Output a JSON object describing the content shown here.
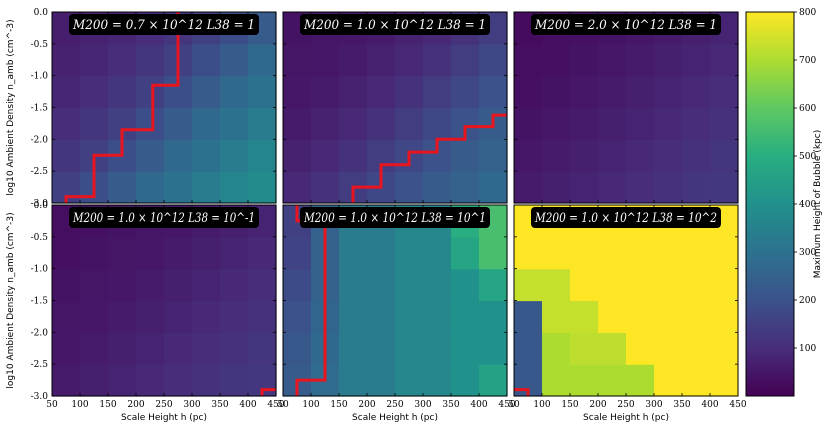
{
  "chart_data": {
    "type": "heatmap",
    "shared": {
      "xlabel": "Scale Height h (pc)",
      "ylabel": "log10 Ambient Density n_amb (cm^-3)",
      "xlim": [
        50,
        450
      ],
      "ylim": [
        -3.0,
        0.0
      ],
      "xticks": [
        "50",
        "100",
        "150",
        "200",
        "250",
        "300",
        "350",
        "400",
        "450"
      ],
      "yticks": [
        "0.0",
        "-0.5",
        "-1.0",
        "-1.5",
        "-2.0",
        "-2.5",
        "-3.0"
      ]
    },
    "colorbar": {
      "label": "Maximum Height of Bubble (kpc)",
      "colormap": "viridis",
      "range": [
        0,
        800
      ],
      "ticks": [
        "100",
        "200",
        "300",
        "400",
        "500",
        "600",
        "700",
        "800"
      ]
    },
    "x_bins": [
      75,
      125,
      175,
      225,
      275,
      325,
      375,
      425
    ],
    "y_bins": [
      -2.75,
      -2.25,
      -1.75,
      -1.25,
      -0.75,
      -0.25
    ],
    "panels": [
      {
        "title": "M200 = 0.7 × 10^12  L38 = 1",
        "values": [
          [
            150,
            190,
            230,
            270,
            300,
            330,
            360,
            380
          ],
          [
            120,
            150,
            190,
            230,
            270,
            300,
            330,
            360
          ],
          [
            100,
            120,
            150,
            190,
            230,
            270,
            300,
            330
          ],
          [
            85,
            100,
            120,
            150,
            190,
            230,
            270,
            300
          ],
          [
            75,
            85,
            100,
            120,
            150,
            190,
            230,
            270
          ],
          [
            65,
            75,
            85,
            100,
            120,
            150,
            190,
            230
          ]
        ],
        "boundary": [
          [
            75,
            -3
          ],
          [
            75,
            -2.9
          ],
          [
            125,
            -2.9
          ],
          [
            125,
            -2.25
          ],
          [
            175,
            -2.25
          ],
          [
            175,
            -1.85
          ],
          [
            230,
            -1.85
          ],
          [
            230,
            -1.15
          ],
          [
            275,
            -1.15
          ],
          [
            275,
            0
          ]
        ]
      },
      {
        "title": "M200 = 1.0 × 10^12  L38 = 1",
        "values": [
          [
            90,
            110,
            140,
            170,
            200,
            230,
            250,
            270
          ],
          [
            75,
            90,
            110,
            140,
            170,
            200,
            230,
            250
          ],
          [
            60,
            75,
            90,
            110,
            140,
            170,
            200,
            230
          ],
          [
            50,
            60,
            75,
            90,
            110,
            140,
            170,
            200
          ],
          [
            45,
            50,
            60,
            75,
            90,
            110,
            140,
            170
          ],
          [
            40,
            45,
            50,
            60,
            75,
            90,
            110,
            140
          ]
        ],
        "boundary": [
          [
            175,
            -3
          ],
          [
            175,
            -2.75
          ],
          [
            225,
            -2.75
          ],
          [
            225,
            -2.4
          ],
          [
            275,
            -2.4
          ],
          [
            275,
            -2.2
          ],
          [
            325,
            -2.2
          ],
          [
            325,
            -2.0
          ],
          [
            375,
            -2.0
          ],
          [
            375,
            -1.8
          ],
          [
            425,
            -1.8
          ],
          [
            425,
            -1.62
          ],
          [
            450,
            -1.62
          ]
        ]
      },
      {
        "title": "M200 = 2.0 × 10^12  L38 = 1",
        "values": [
          [
            60,
            70,
            80,
            90,
            100,
            110,
            120,
            130
          ],
          [
            50,
            60,
            70,
            80,
            90,
            100,
            110,
            120
          ],
          [
            40,
            50,
            60,
            70,
            80,
            90,
            100,
            110
          ],
          [
            35,
            40,
            50,
            60,
            70,
            80,
            90,
            100
          ],
          [
            30,
            35,
            40,
            50,
            60,
            70,
            80,
            90
          ],
          [
            25,
            30,
            35,
            40,
            50,
            60,
            70,
            80
          ]
        ],
        "boundary": []
      },
      {
        "title": "M200 = 1.0 × 10^12  L38 = 10^-1",
        "values": [
          [
            60,
            70,
            80,
            90,
            100,
            110,
            120,
            130
          ],
          [
            50,
            60,
            70,
            80,
            90,
            100,
            110,
            120
          ],
          [
            45,
            50,
            60,
            70,
            80,
            90,
            100,
            110
          ],
          [
            40,
            45,
            50,
            60,
            70,
            80,
            90,
            100
          ],
          [
            35,
            40,
            45,
            50,
            60,
            70,
            80,
            90
          ],
          [
            30,
            35,
            40,
            45,
            50,
            60,
            70,
            80
          ]
        ],
        "boundary": [
          [
            450,
            -2.9
          ],
          [
            425,
            -2.9
          ],
          [
            425,
            -3
          ]
        ]
      },
      {
        "title": "M200 = 1.0 × 10^12  L38 = 10^1",
        "values": [
          [
            230,
            280,
            330,
            330,
            370,
            370,
            400,
            460
          ],
          [
            220,
            270,
            330,
            330,
            370,
            370,
            400,
            400
          ],
          [
            200,
            260,
            330,
            330,
            370,
            370,
            400,
            400
          ],
          [
            180,
            250,
            330,
            330,
            370,
            370,
            400,
            470
          ],
          [
            160,
            250,
            330,
            330,
            370,
            370,
            470,
            560
          ],
          [
            150,
            250,
            330,
            330,
            370,
            370,
            500,
            560
          ]
        ],
        "boundary": [
          [
            75,
            -3
          ],
          [
            75,
            -2.75
          ],
          [
            125,
            -2.75
          ],
          [
            125,
            -0.25
          ],
          [
            75,
            -0.25
          ],
          [
            75,
            0
          ]
        ]
      },
      {
        "title": "M200 = 1.0 × 10^12  L38 = 10^2",
        "values": [
          [
            220,
            700,
            700,
            700,
            700,
            800,
            800,
            800
          ],
          [
            220,
            700,
            720,
            720,
            800,
            800,
            800,
            800
          ],
          [
            220,
            730,
            730,
            800,
            800,
            800,
            800,
            800
          ],
          [
            730,
            730,
            800,
            800,
            800,
            800,
            800,
            800
          ],
          [
            800,
            800,
            800,
            800,
            800,
            800,
            800,
            800
          ],
          [
            800,
            800,
            800,
            800,
            800,
            800,
            800,
            800
          ]
        ],
        "boundary": [
          [
            50,
            -2.9
          ],
          [
            75,
            -2.9
          ],
          [
            75,
            -3
          ]
        ]
      }
    ]
  }
}
